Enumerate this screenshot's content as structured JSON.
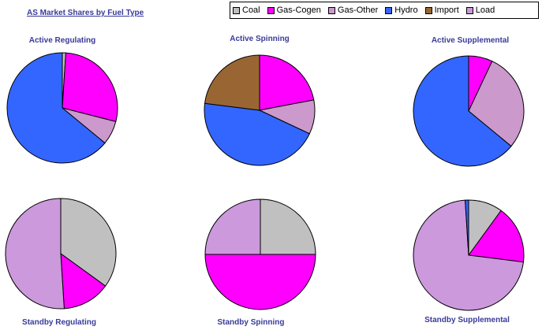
{
  "title": "AS Market Shares by Fuel Type",
  "legend": [
    {
      "label": "Coal",
      "color": "#c0c0c0"
    },
    {
      "label": "Gas-Cogen",
      "color": "#ff00ff"
    },
    {
      "label": "Gas-Other",
      "color": "#cc99cc"
    },
    {
      "label": "Hydro",
      "color": "#3366ff"
    },
    {
      "label": "Import",
      "color": "#996633"
    },
    {
      "label": "Load",
      "color": "#cc99dd"
    }
  ],
  "chart_data": [
    {
      "type": "pie",
      "title": "Active Regulating",
      "slices": [
        {
          "label": "Coal",
          "value": 1
        },
        {
          "label": "Gas-Cogen",
          "value": 28
        },
        {
          "label": "Gas-Other",
          "value": 7
        },
        {
          "label": "Hydro",
          "value": 64
        }
      ]
    },
    {
      "type": "pie",
      "title": "Active Spinning",
      "slices": [
        {
          "label": "Gas-Cogen",
          "value": 22
        },
        {
          "label": "Gas-Other",
          "value": 10
        },
        {
          "label": "Hydro",
          "value": 45
        },
        {
          "label": "Import",
          "value": 23
        }
      ]
    },
    {
      "type": "pie",
      "title": "Active Supplemental",
      "slices": [
        {
          "label": "Gas-Cogen",
          "value": 7
        },
        {
          "label": "Gas-Other",
          "value": 29
        },
        {
          "label": "Hydro",
          "value": 64
        }
      ]
    },
    {
      "type": "pie",
      "title": "Standby Regulating",
      "slices": [
        {
          "label": "Coal",
          "value": 35
        },
        {
          "label": "Gas-Cogen",
          "value": 14
        },
        {
          "label": "Load",
          "value": 51
        }
      ]
    },
    {
      "type": "pie",
      "title": "Standby Spinning",
      "slices": [
        {
          "label": "Coal",
          "value": 25
        },
        {
          "label": "Gas-Cogen",
          "value": 50
        },
        {
          "label": "Load",
          "value": 25
        }
      ]
    },
    {
      "type": "pie",
      "title": "Standby Supplemental",
      "slices": [
        {
          "label": "Coal",
          "value": 10
        },
        {
          "label": "Gas-Cogen",
          "value": 17
        },
        {
          "label": "Load",
          "value": 72
        },
        {
          "label": "Hydro",
          "value": 1
        }
      ]
    }
  ]
}
